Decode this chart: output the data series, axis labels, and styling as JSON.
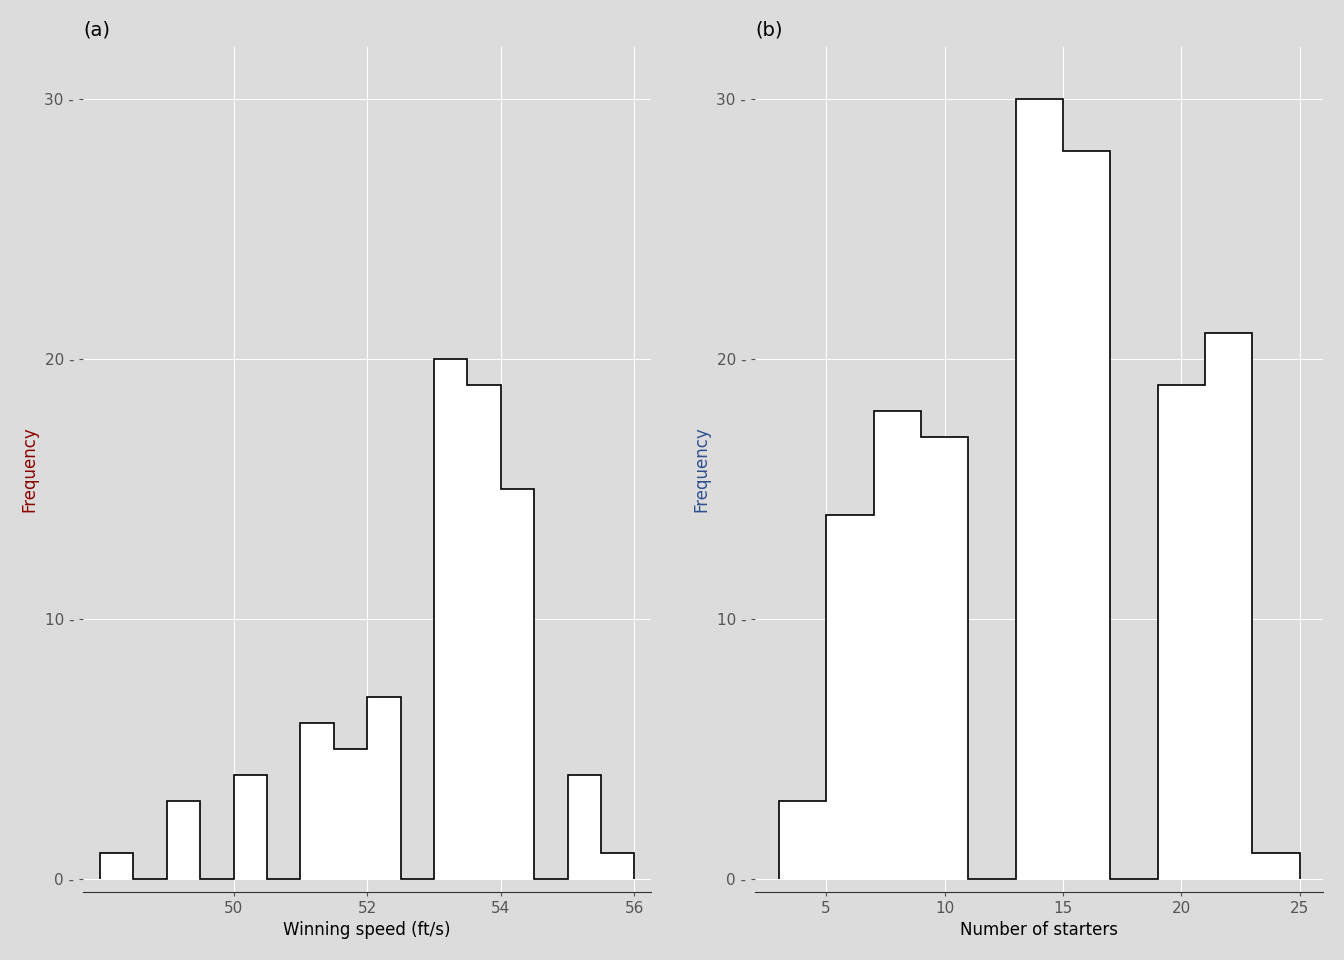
{
  "plot_a": {
    "title": "(a)",
    "xlabel": "Winning speed (ft/s)",
    "ylabel": "Frequency",
    "bin_edges": [
      48.0,
      48.5,
      49.0,
      49.5,
      50.0,
      50.5,
      51.0,
      51.5,
      52.0,
      52.5,
      53.0,
      53.5,
      54.0,
      54.5,
      55.0,
      55.5,
      56.0
    ],
    "counts": [
      1,
      0,
      3,
      0,
      4,
      0,
      6,
      5,
      7,
      0,
      20,
      19,
      15,
      0,
      4,
      1
    ],
    "xlim": [
      47.75,
      56.25
    ],
    "ylim": [
      -0.5,
      32
    ],
    "xticks": [
      50,
      52,
      54,
      56
    ],
    "yticks": [
      0,
      10,
      20,
      30
    ],
    "ylabel_color": "#8B0000"
  },
  "plot_b": {
    "title": "(b)",
    "xlabel": "Number of starters",
    "ylabel": "Frequency",
    "bin_edges": [
      3,
      5,
      7,
      9,
      11,
      13,
      15,
      17,
      19,
      21,
      23,
      25
    ],
    "counts": [
      3,
      14,
      18,
      17,
      0,
      30,
      28,
      0,
      19,
      21,
      1
    ],
    "xlim": [
      2,
      26
    ],
    "ylim": [
      -0.5,
      32
    ],
    "xticks": [
      5,
      10,
      15,
      20,
      25
    ],
    "yticks": [
      0,
      10,
      20,
      30
    ],
    "ylabel_color": "#2F4F8F"
  },
  "bg_color": "#DCDCDC",
  "bar_facecolor": "#FFFFFF",
  "bar_edgecolor": "#000000",
  "bar_linewidth": 1.2,
  "grid_color": "#FFFFFF",
  "grid_linewidth": 0.8,
  "title_fontsize": 14,
  "label_fontsize": 12,
  "tick_fontsize": 11,
  "tick_color": "#555555"
}
